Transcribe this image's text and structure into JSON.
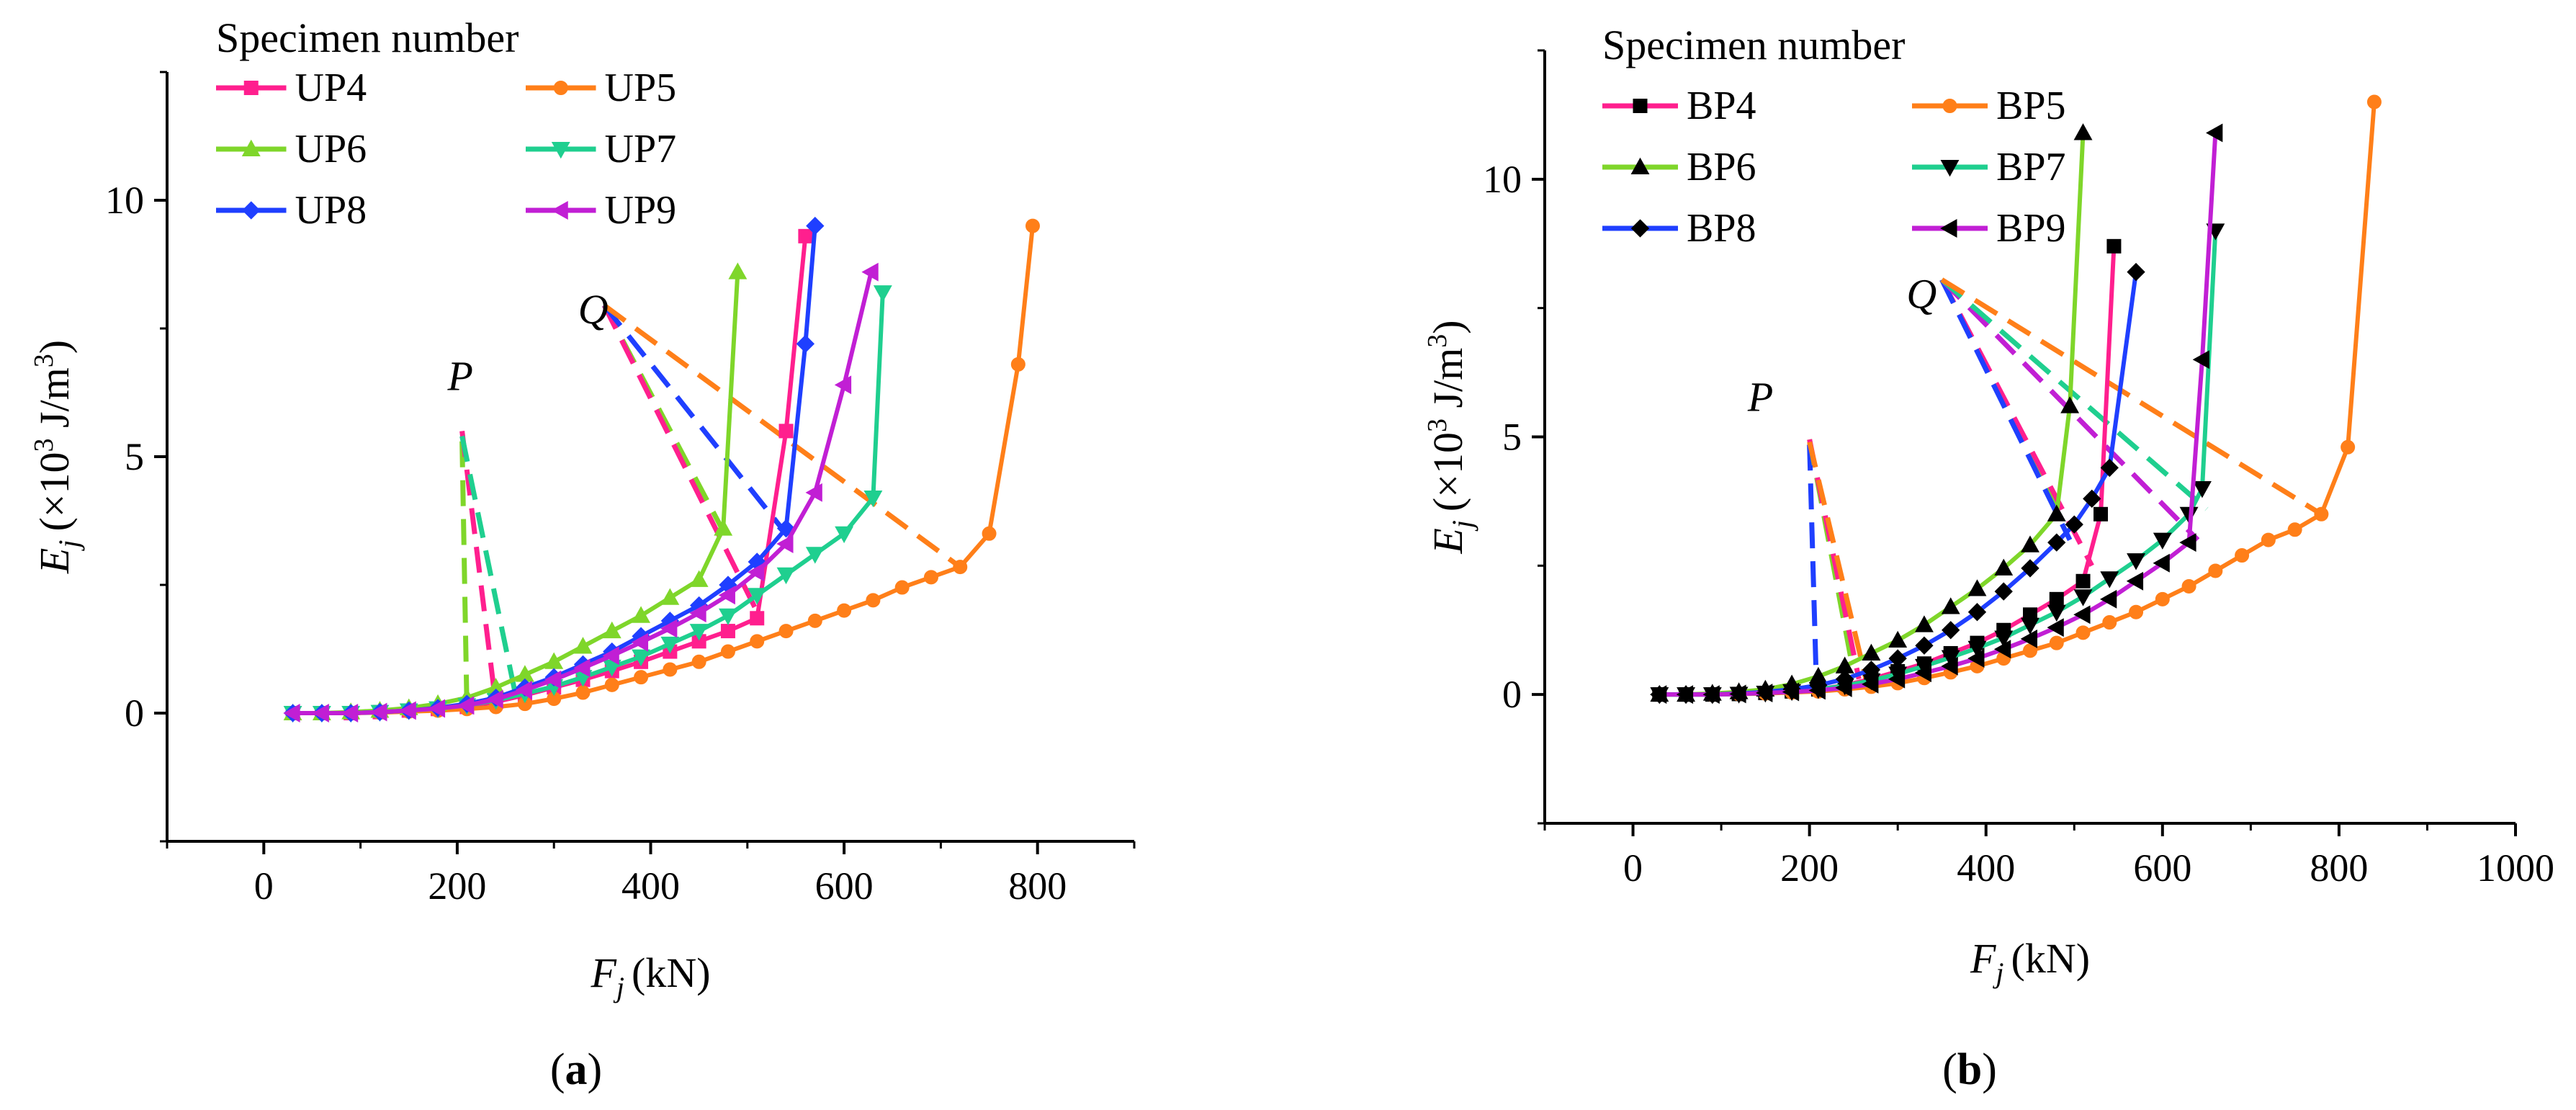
{
  "figure": {
    "panels": [
      {
        "caption": "(a)",
        "caption_letter": "a",
        "chart_ref": 0
      },
      {
        "caption": "(b)",
        "caption_letter": "b",
        "chart_ref": 1
      }
    ]
  },
  "chart_data": [
    {
      "type": "line",
      "panel": "a",
      "title": "",
      "xlabel": "F_j (kN)",
      "xlabel_var": "F",
      "xlabel_sub": "j",
      "xlabel_unit": "(kN)",
      "ylabel": "E_j (×10^3 J/m^3)",
      "ylabel_var": "E",
      "ylabel_sub": "j",
      "ylabel_unit_open": "(×10",
      "ylabel_unit_exp": "3",
      "ylabel_unit_mid": " J/m",
      "ylabel_unit_exp2": "3",
      "ylabel_unit_close": ")",
      "xlim": [
        -100,
        900
      ],
      "ylim": [
        -2.5,
        12.5
      ],
      "xticks": [
        0,
        200,
        400,
        600,
        800
      ],
      "yticks": [
        0,
        5,
        10
      ],
      "legend_title": "Specimen number",
      "legend_position": "top-left",
      "series": [
        {
          "name": "UP4",
          "color": "#ff1f8e",
          "marker": "square",
          "marker_fill": "#ff1f8e",
          "x": [
            30,
            60,
            90,
            120,
            150,
            180,
            210,
            240,
            270,
            300,
            330,
            360,
            390,
            420,
            450,
            480,
            510,
            540,
            560
          ],
          "y": [
            0,
            0,
            0,
            0.02,
            0.05,
            0.08,
            0.12,
            0.22,
            0.35,
            0.5,
            0.65,
            0.82,
            1.0,
            1.2,
            1.4,
            1.6,
            1.85,
            5.5,
            9.3
          ],
          "marker_every": 1
        },
        {
          "name": "UP5",
          "color": "#ff7f19",
          "marker": "circle",
          "marker_fill": "#ff7f19",
          "x": [
            30,
            60,
            90,
            120,
            150,
            180,
            210,
            240,
            270,
            300,
            330,
            360,
            390,
            420,
            450,
            480,
            510,
            540,
            570,
            600,
            630,
            660,
            690,
            720,
            750,
            780,
            795
          ],
          "y": [
            0,
            0,
            0,
            0.01,
            0.03,
            0.05,
            0.08,
            0.12,
            0.18,
            0.28,
            0.4,
            0.55,
            0.7,
            0.85,
            1.0,
            1.2,
            1.4,
            1.6,
            1.8,
            2.0,
            2.2,
            2.45,
            2.65,
            2.85,
            3.5,
            6.8,
            9.5
          ],
          "marker_every": 1
        },
        {
          "name": "UP6",
          "color": "#7fd62a",
          "marker": "triangle-up",
          "marker_fill": "#7fd62a",
          "x": [
            30,
            60,
            90,
            120,
            150,
            180,
            210,
            240,
            270,
            300,
            330,
            360,
            390,
            420,
            450,
            475,
            490
          ],
          "y": [
            0,
            0,
            0.02,
            0.05,
            0.1,
            0.18,
            0.3,
            0.5,
            0.75,
            1.0,
            1.3,
            1.6,
            1.9,
            2.25,
            2.6,
            3.6,
            8.6
          ],
          "marker_every": 1
        },
        {
          "name": "UP7",
          "color": "#1fcf8f",
          "marker": "triangle-down",
          "marker_fill": "#1fcf8f",
          "x": [
            30,
            60,
            90,
            120,
            150,
            180,
            210,
            240,
            270,
            300,
            330,
            360,
            390,
            420,
            450,
            480,
            510,
            540,
            570,
            600,
            630,
            640
          ],
          "y": [
            0,
            0,
            0,
            0.02,
            0.05,
            0.09,
            0.15,
            0.25,
            0.38,
            0.52,
            0.7,
            0.9,
            1.1,
            1.35,
            1.6,
            1.9,
            2.3,
            2.7,
            3.1,
            3.5,
            4.2,
            8.2
          ],
          "marker_every": 1
        },
        {
          "name": "UP8",
          "color": "#1f3fff",
          "marker": "diamond",
          "marker_fill": "#1f3fff",
          "x": [
            30,
            60,
            90,
            120,
            150,
            180,
            210,
            240,
            270,
            300,
            330,
            360,
            390,
            420,
            450,
            480,
            510,
            540,
            560,
            570
          ],
          "y": [
            0,
            0,
            0,
            0.02,
            0.05,
            0.1,
            0.18,
            0.3,
            0.5,
            0.7,
            0.95,
            1.2,
            1.5,
            1.8,
            2.1,
            2.5,
            2.95,
            3.6,
            7.2,
            9.5
          ],
          "marker_every": 1
        },
        {
          "name": "UP9",
          "color": "#c11fd4",
          "marker": "triangle-left",
          "marker_fill": "#c11fd4",
          "x": [
            30,
            60,
            90,
            120,
            150,
            180,
            210,
            240,
            270,
            300,
            330,
            360,
            390,
            420,
            450,
            480,
            510,
            540,
            570,
            600,
            628
          ],
          "y": [
            0,
            0,
            0,
            0.02,
            0.05,
            0.09,
            0.15,
            0.27,
            0.45,
            0.65,
            0.88,
            1.12,
            1.38,
            1.65,
            1.95,
            2.3,
            2.75,
            3.3,
            4.3,
            6.4,
            8.6
          ],
          "marker_every": 1
        }
      ],
      "dashed_lines": [
        {
          "name": "P-UP6",
          "color": "#7fd62a",
          "x": [
            205,
            210
          ],
          "y": [
            5.3,
            0.1
          ]
        },
        {
          "name": "P-UP4",
          "color": "#ff1f8e",
          "x": [
            205,
            240
          ],
          "y": [
            5.5,
            0.15
          ]
        },
        {
          "name": "P-UP7",
          "color": "#1fcf8f",
          "x": [
            205,
            262
          ],
          "y": [
            5.4,
            0.2
          ]
        },
        {
          "name": "Q-UP6",
          "color": "#7fd62a",
          "x": [
            352,
            475
          ],
          "y": [
            7.95,
            3.55
          ]
        },
        {
          "name": "Q-UP4",
          "color": "#ff1f8e",
          "x": [
            352,
            512
          ],
          "y": [
            7.95,
            1.9
          ]
        },
        {
          "name": "Q-UP8",
          "color": "#1f3fff",
          "x": [
            352,
            540
          ],
          "y": [
            7.95,
            3.5
          ]
        },
        {
          "name": "Q-UP5",
          "color": "#ff7f19",
          "x": [
            352,
            720
          ],
          "y": [
            7.95,
            2.85
          ]
        }
      ],
      "annotations": [
        {
          "text": "P",
          "x": 190,
          "y": 6.3
        },
        {
          "text": "Q",
          "x": 325,
          "y": 7.6
        }
      ]
    },
    {
      "type": "line",
      "panel": "b",
      "title": "",
      "xlabel": "F_j (kN)",
      "xlabel_var": "F",
      "xlabel_sub": "j",
      "xlabel_unit": "(kN)",
      "ylabel": "E_j (×10^3 J/m^3)",
      "ylabel_var": "E",
      "ylabel_sub": "j",
      "ylabel_unit_open": "(×10",
      "ylabel_unit_exp": "3",
      "ylabel_unit_mid": " J/m",
      "ylabel_unit_exp2": "3",
      "ylabel_unit_close": ")",
      "xlim": [
        -100,
        1000
      ],
      "ylim": [
        -2.5,
        12.5
      ],
      "xticks": [
        0,
        200,
        400,
        600,
        800,
        1000
      ],
      "yticks": [
        0,
        5,
        10
      ],
      "legend_title": "Specimen number",
      "legend_position": "top-left",
      "series": [
        {
          "name": "BP4",
          "color": "#ff1f8e",
          "marker": "square",
          "marker_fill": "#000000",
          "x": [
            30,
            60,
            90,
            120,
            150,
            180,
            210,
            240,
            270,
            300,
            330,
            360,
            390,
            420,
            450,
            480,
            510,
            530,
            545
          ],
          "y": [
            0,
            0,
            0,
            0.01,
            0.03,
            0.06,
            0.1,
            0.18,
            0.3,
            0.45,
            0.6,
            0.8,
            1.0,
            1.25,
            1.55,
            1.85,
            2.2,
            3.5,
            8.7
          ],
          "marker_every": 1
        },
        {
          "name": "BP5",
          "color": "#ff7f19",
          "marker": "circle",
          "marker_fill": "#ff7f19",
          "x": [
            30,
            60,
            90,
            120,
            150,
            180,
            210,
            240,
            270,
            300,
            330,
            360,
            390,
            420,
            450,
            480,
            510,
            540,
            570,
            600,
            630,
            660,
            690,
            720,
            750,
            780,
            810,
            840
          ],
          "y": [
            0,
            0,
            0,
            0.01,
            0.02,
            0.04,
            0.06,
            0.1,
            0.15,
            0.22,
            0.32,
            0.43,
            0.55,
            0.7,
            0.85,
            1.0,
            1.2,
            1.4,
            1.6,
            1.85,
            2.1,
            2.4,
            2.7,
            3.0,
            3.2,
            3.5,
            4.8,
            11.5
          ],
          "marker_every": 1
        },
        {
          "name": "BP6",
          "color": "#7fd62a",
          "marker": "triangle-up",
          "marker_fill": "#000000",
          "x": [
            30,
            60,
            90,
            120,
            150,
            180,
            210,
            240,
            270,
            300,
            330,
            360,
            390,
            420,
            450,
            480,
            495,
            510
          ],
          "y": [
            0,
            0,
            0.02,
            0.05,
            0.1,
            0.2,
            0.35,
            0.55,
            0.8,
            1.05,
            1.35,
            1.7,
            2.05,
            2.45,
            2.9,
            3.5,
            5.6,
            10.9
          ],
          "marker_every": 1
        },
        {
          "name": "BP7",
          "color": "#1fcf8f",
          "marker": "triangle-down",
          "marker_fill": "#000000",
          "x": [
            30,
            60,
            90,
            120,
            150,
            180,
            210,
            240,
            270,
            300,
            330,
            360,
            390,
            420,
            450,
            480,
            510,
            540,
            570,
            600,
            630,
            645,
            660
          ],
          "y": [
            0,
            0,
            0,
            0.01,
            0.03,
            0.06,
            0.1,
            0.17,
            0.27,
            0.4,
            0.55,
            0.72,
            0.9,
            1.1,
            1.35,
            1.6,
            1.9,
            2.25,
            2.6,
            3.0,
            3.5,
            4.0,
            9.0
          ],
          "marker_every": 1
        },
        {
          "name": "BP8",
          "color": "#1f3fff",
          "marker": "diamond",
          "marker_fill": "#000000",
          "x": [
            30,
            60,
            90,
            120,
            150,
            180,
            210,
            240,
            270,
            300,
            330,
            360,
            390,
            420,
            450,
            480,
            500,
            520,
            540,
            570
          ],
          "y": [
            0,
            0,
            0,
            0.02,
            0.05,
            0.1,
            0.18,
            0.3,
            0.48,
            0.7,
            0.95,
            1.25,
            1.6,
            2.0,
            2.45,
            2.95,
            3.3,
            3.8,
            4.4,
            8.2
          ],
          "marker_every": 1
        },
        {
          "name": "BP9",
          "color": "#c11fd4",
          "marker": "triangle-left",
          "marker_fill": "#000000",
          "x": [
            30,
            60,
            90,
            120,
            150,
            180,
            210,
            240,
            270,
            300,
            330,
            360,
            390,
            420,
            450,
            480,
            510,
            540,
            570,
            600,
            630,
            645,
            660
          ],
          "y": [
            0,
            0,
            0,
            0.01,
            0.03,
            0.05,
            0.08,
            0.13,
            0.2,
            0.3,
            0.42,
            0.55,
            0.7,
            0.88,
            1.08,
            1.3,
            1.55,
            1.85,
            2.2,
            2.55,
            2.95,
            6.5,
            10.9
          ],
          "marker_every": 1
        }
      ],
      "dashed_lines": [
        {
          "name": "P-BP8",
          "color": "#1f3fff",
          "x": [
            200,
            208
          ],
          "y": [
            4.85,
            0.1
          ]
        },
        {
          "name": "P-BP6",
          "color": "#7fd62a",
          "x": [
            200,
            248
          ],
          "y": [
            4.95,
            0.6
          ]
        },
        {
          "name": "P-BP4",
          "color": "#ff1f8e",
          "x": [
            200,
            256
          ],
          "y": [
            4.95,
            0.3
          ]
        },
        {
          "name": "P-BP5",
          "color": "#ff7f19",
          "x": [
            200,
            266
          ],
          "y": [
            4.9,
            0.15
          ]
        },
        {
          "name": "Q-BP6",
          "color": "#7fd62a",
          "x": [
            350,
            480
          ],
          "y": [
            8.05,
            3.6
          ]
        },
        {
          "name": "Q-BP4",
          "color": "#ff1f8e",
          "x": [
            350,
            520
          ],
          "y": [
            8.05,
            2.5
          ]
        },
        {
          "name": "Q-BP8",
          "color": "#1f3fff",
          "x": [
            350,
            495
          ],
          "y": [
            8.05,
            3.0
          ]
        },
        {
          "name": "Q-BP9",
          "color": "#c11fd4",
          "x": [
            350,
            640
          ],
          "y": [
            8.05,
            3.0
          ]
        },
        {
          "name": "Q-BP7",
          "color": "#1fcf8f",
          "x": [
            350,
            650
          ],
          "y": [
            8.05,
            3.6
          ]
        },
        {
          "name": "Q-BP5",
          "color": "#ff7f19",
          "x": [
            350,
            780
          ],
          "y": [
            8.05,
            3.5
          ]
        }
      ],
      "annotations": [
        {
          "text": "P",
          "x": 130,
          "y": 5.5
        },
        {
          "text": "Q",
          "x": 310,
          "y": 7.5
        }
      ]
    }
  ]
}
